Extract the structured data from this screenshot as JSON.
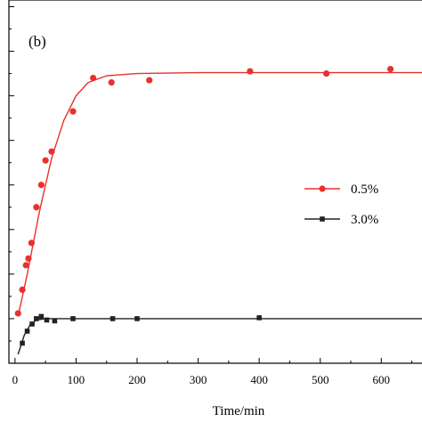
{
  "chart_data": {
    "type": "line",
    "panel_label": "(b)",
    "title": "",
    "xlabel": "Time/min",
    "ylabel": "",
    "xlim": [
      -10,
      690
    ],
    "ylim": [
      0,
      8.15
    ],
    "x_ticks": [
      0,
      100,
      200,
      300,
      400,
      500,
      600
    ],
    "y_tick_count": 9,
    "grid": false,
    "legend_position": "center-right",
    "series": [
      {
        "name": "0.5%",
        "color": "#e8312f",
        "marker": "circle",
        "points": [
          [
            5,
            1.12
          ],
          [
            12,
            1.65
          ],
          [
            18,
            2.2
          ],
          [
            22,
            2.35
          ],
          [
            27,
            2.7
          ],
          [
            35,
            3.5
          ],
          [
            43,
            4.0
          ],
          [
            50,
            4.55
          ],
          [
            60,
            4.75
          ],
          [
            95,
            5.65
          ],
          [
            128,
            6.4
          ],
          [
            158,
            6.3
          ],
          [
            220,
            6.35
          ],
          [
            385,
            6.55
          ],
          [
            510,
            6.5
          ],
          [
            615,
            6.6
          ]
        ],
        "fit": [
          [
            5,
            1.05
          ],
          [
            20,
            2.0
          ],
          [
            40,
            3.4
          ],
          [
            60,
            4.6
          ],
          [
            80,
            5.45
          ],
          [
            100,
            6.0
          ],
          [
            120,
            6.3
          ],
          [
            150,
            6.45
          ],
          [
            200,
            6.5
          ],
          [
            300,
            6.52
          ],
          [
            690,
            6.52
          ]
        ]
      },
      {
        "name": "3.0%",
        "color": "#222222",
        "marker": "square",
        "points": [
          [
            12,
            0.45
          ],
          [
            20,
            0.72
          ],
          [
            28,
            0.88
          ],
          [
            35,
            1.0
          ],
          [
            43,
            1.05
          ],
          [
            52,
            0.97
          ],
          [
            65,
            0.95
          ],
          [
            95,
            1.0
          ],
          [
            160,
            1.0
          ],
          [
            200,
            1.0
          ],
          [
            400,
            1.02
          ]
        ],
        "fit": [
          [
            5,
            0.2
          ],
          [
            15,
            0.62
          ],
          [
            25,
            0.87
          ],
          [
            35,
            0.97
          ],
          [
            50,
            1.0
          ],
          [
            100,
            1.0
          ],
          [
            690,
            1.0
          ]
        ]
      }
    ]
  }
}
